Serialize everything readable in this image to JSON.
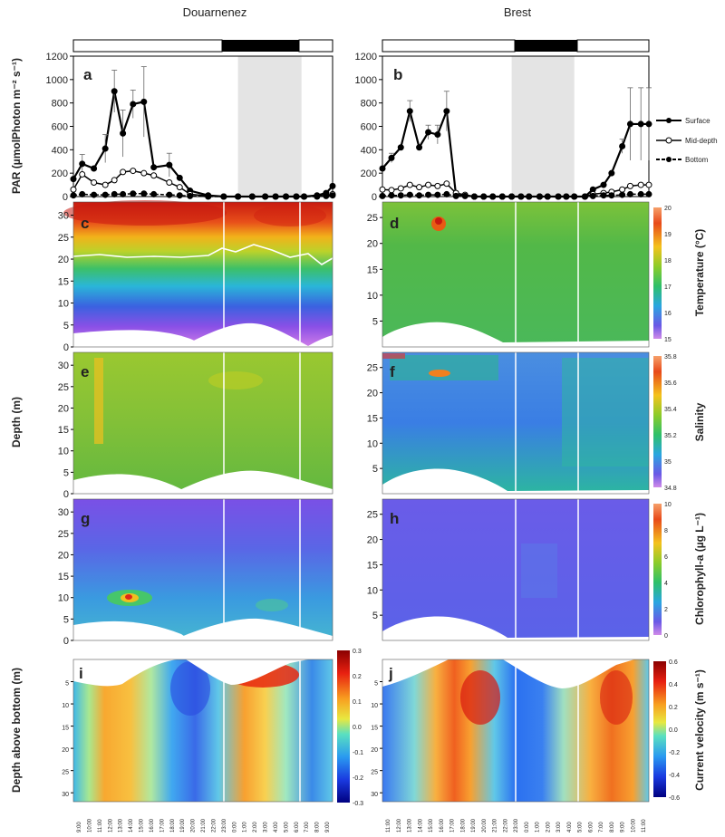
{
  "titles": {
    "left": "Douarnenez",
    "right": "Brest"
  },
  "panel_letters": [
    "a",
    "b",
    "c",
    "d",
    "e",
    "f",
    "g",
    "h",
    "i",
    "j"
  ],
  "axis_labels": {
    "par": "PAR (µmolPhoton m⁻² s⁻¹)",
    "depth": "Depth (m)",
    "depth_above_bottom": "Depth above bottom (m)"
  },
  "colorbars": {
    "temperature": {
      "label": "Temperature (°C)",
      "ticks": [
        "20",
        "19",
        "18",
        "17",
        "16",
        "15"
      ]
    },
    "salinity": {
      "label": "Salinity",
      "ticks": [
        "35.8",
        "35.6",
        "35.4",
        "35.2",
        "35",
        "34.8"
      ]
    },
    "chlorophyll": {
      "label": "Chlorophyll-a (µg L⁻¹)",
      "ticks": [
        "10",
        "8",
        "6",
        "4",
        "2",
        "0"
      ]
    },
    "current_left": {
      "ticks": [
        "0.3",
        "0.2",
        "0.1",
        "0.0",
        "-0.1",
        "-0.2",
        "-0.3"
      ]
    },
    "current_right": {
      "label": "Current velocity (m s⁻¹)",
      "ticks": [
        "0.6",
        "0.4",
        "0.2",
        "0.0",
        "-0.2",
        "-0.4",
        "-0.6"
      ]
    }
  },
  "legend": [
    "Surface",
    "Mid-depth",
    "Bottom"
  ],
  "time_labels": {
    "left": [
      "9:00",
      "10:00",
      "11:00",
      "12:00",
      "13:00",
      "14:00",
      "15:00",
      "16:00",
      "17:00",
      "18:00",
      "19:00",
      "20:00",
      "21:00",
      "22:00",
      "23:00",
      "0:00",
      "1:00",
      "2:00",
      "3:00",
      "4:00",
      "5:00",
      "6:00",
      "7:00",
      "8:00",
      "9:00"
    ],
    "right": [
      "11:00",
      "12:00",
      "13:00",
      "14:00",
      "15:00",
      "16:00",
      "17:00",
      "18:00",
      "19:00",
      "20:00",
      "21:00",
      "22:00",
      "23:00",
      "0:00",
      "1:00",
      "2:00",
      "3:00",
      "4:00",
      "5:00",
      "6:00",
      "7:00",
      "8:00",
      "9:00",
      "10:00",
      "11:00"
    ]
  },
  "chart_data": [
    {
      "panel": "a",
      "type": "line",
      "site": "Douarnenez",
      "title": "",
      "xlabel": "",
      "ylabel": "PAR (µmolPhoton m⁻² s⁻¹)",
      "ylim": [
        0,
        1200
      ],
      "yticks": [
        0,
        200,
        400,
        600,
        800,
        1000,
        1200
      ],
      "night_shading": [
        0.635,
        0.88
      ],
      "series": [
        {
          "name": "Surface",
          "x": [
            0.0,
            0.034,
            0.079,
            0.123,
            0.158,
            0.191,
            0.23,
            0.272,
            0.31,
            0.37,
            0.41,
            0.45,
            0.52,
            0.58,
            0.635,
            0.69,
            0.74,
            0.78,
            0.82,
            0.86,
            0.89,
            0.94,
            0.975,
            1.0
          ],
          "values": [
            150,
            280,
            240,
            410,
            900,
            540,
            790,
            810,
            250,
            270,
            160,
            50,
            10,
            0,
            0,
            0,
            0,
            0,
            0,
            0,
            0,
            10,
            30,
            90
          ],
          "err": [
            0,
            80,
            0,
            120,
            180,
            200,
            120,
            300,
            0,
            100,
            0,
            0,
            0,
            0,
            0,
            0,
            0,
            0,
            0,
            0,
            0,
            0,
            0,
            0
          ]
        },
        {
          "name": "Mid-depth",
          "x": [
            0.0,
            0.034,
            0.079,
            0.123,
            0.158,
            0.191,
            0.23,
            0.272,
            0.31,
            0.37,
            0.41,
            0.45,
            0.52,
            0.58,
            0.635,
            0.69,
            0.74,
            0.78,
            0.82,
            0.86,
            0.89,
            0.94,
            0.975,
            1.0
          ],
          "values": [
            60,
            190,
            120,
            100,
            140,
            210,
            220,
            200,
            180,
            120,
            80,
            20,
            5,
            0,
            0,
            0,
            0,
            0,
            0,
            0,
            0,
            5,
            10,
            20
          ]
        },
        {
          "name": "Bottom",
          "x": [
            0.0,
            0.034,
            0.079,
            0.123,
            0.158,
            0.191,
            0.23,
            0.272,
            0.31,
            0.37,
            0.41,
            0.45,
            0.52,
            0.58,
            0.635,
            0.69,
            0.74,
            0.78,
            0.82,
            0.86,
            0.89,
            0.94,
            0.975,
            1.0
          ],
          "values": [
            10,
            20,
            15,
            15,
            20,
            20,
            25,
            25,
            20,
            15,
            10,
            5,
            0,
            0,
            0,
            0,
            0,
            0,
            0,
            0,
            0,
            0,
            5,
            10
          ]
        }
      ]
    },
    {
      "panel": "b",
      "type": "line",
      "site": "Brest",
      "title": "",
      "xlabel": "",
      "ylabel": "",
      "ylim": [
        0,
        1200
      ],
      "yticks": [
        0,
        200,
        400,
        600,
        800,
        1000,
        1200
      ],
      "night_shading": [
        0.485,
        0.72
      ],
      "series": [
        {
          "name": "Surface",
          "x": [
            0.0,
            0.034,
            0.069,
            0.103,
            0.138,
            0.172,
            0.207,
            0.241,
            0.276,
            0.31,
            0.345,
            0.38,
            0.414,
            0.45,
            0.485,
            0.52,
            0.55,
            0.59,
            0.62,
            0.66,
            0.69,
            0.72,
            0.76,
            0.79,
            0.83,
            0.86,
            0.9,
            0.93,
            0.97,
            1.0
          ],
          "values": [
            240,
            330,
            420,
            730,
            420,
            550,
            530,
            730,
            10,
            10,
            0,
            0,
            0,
            0,
            0,
            0,
            0,
            0,
            0,
            0,
            0,
            0,
            0,
            60,
            100,
            200,
            430,
            620,
            620,
            620
          ],
          "err": [
            0,
            40,
            0,
            90,
            0,
            60,
            80,
            170,
            0,
            0,
            0,
            0,
            0,
            0,
            0,
            0,
            0,
            0,
            0,
            0,
            0,
            0,
            0,
            0,
            0,
            0,
            60,
            310,
            310,
            310
          ]
        },
        {
          "name": "Mid-depth",
          "x": [
            0.0,
            0.034,
            0.069,
            0.103,
            0.138,
            0.172,
            0.207,
            0.241,
            0.276,
            0.31,
            0.345,
            0.38,
            0.414,
            0.45,
            0.485,
            0.52,
            0.55,
            0.59,
            0.62,
            0.66,
            0.69,
            0.72,
            0.76,
            0.79,
            0.83,
            0.86,
            0.9,
            0.93,
            0.97,
            1.0
          ],
          "values": [
            60,
            55,
            70,
            100,
            80,
            100,
            90,
            110,
            30,
            15,
            0,
            0,
            0,
            0,
            0,
            0,
            0,
            0,
            0,
            0,
            0,
            0,
            0,
            20,
            30,
            40,
            60,
            90,
            100,
            100
          ]
        },
        {
          "name": "Bottom",
          "x": [
            0.0,
            0.034,
            0.069,
            0.103,
            0.138,
            0.172,
            0.207,
            0.241,
            0.276,
            0.31,
            0.345,
            0.38,
            0.414,
            0.45,
            0.485,
            0.52,
            0.55,
            0.59,
            0.62,
            0.66,
            0.69,
            0.72,
            0.76,
            0.79,
            0.83,
            0.86,
            0.9,
            0.93,
            0.97,
            1.0
          ],
          "values": [
            5,
            10,
            10,
            15,
            10,
            15,
            15,
            20,
            5,
            5,
            0,
            0,
            0,
            0,
            0,
            0,
            0,
            0,
            0,
            0,
            0,
            0,
            0,
            5,
            10,
            10,
            15,
            20,
            20,
            20
          ]
        }
      ]
    },
    {
      "panel": "c",
      "type": "heatmap",
      "variable": "Temperature (°C)",
      "site": "Douarnenez",
      "ylim": [
        33,
        0
      ],
      "yticks": [
        0,
        5,
        10,
        15,
        20,
        25,
        30
      ],
      "vmin": 15,
      "vmax": 20
    },
    {
      "panel": "d",
      "type": "heatmap",
      "variable": "Temperature (°C)",
      "site": "Brest",
      "ylim": [
        28,
        0
      ],
      "yticks": [
        5,
        10,
        15,
        20,
        25
      ],
      "vmin": 15,
      "vmax": 20
    },
    {
      "panel": "e",
      "type": "heatmap",
      "variable": "Salinity",
      "site": "Douarnenez",
      "ylim": [
        33,
        0
      ],
      "yticks": [
        0,
        5,
        10,
        15,
        20,
        25,
        30
      ],
      "vmin": 34.8,
      "vmax": 35.8
    },
    {
      "panel": "f",
      "type": "heatmap",
      "variable": "Salinity",
      "site": "Brest",
      "ylim": [
        28,
        0
      ],
      "yticks": [
        5,
        10,
        15,
        20,
        25
      ],
      "vmin": 34.8,
      "vmax": 35.8
    },
    {
      "panel": "g",
      "type": "heatmap",
      "variable": "Chlorophyll-a (µg L⁻¹)",
      "site": "Douarnenez",
      "ylim": [
        33,
        0
      ],
      "yticks": [
        0,
        5,
        10,
        15,
        20,
        25,
        30
      ],
      "vmin": 0,
      "vmax": 10
    },
    {
      "panel": "h",
      "type": "heatmap",
      "variable": "Chlorophyll-a (µg L⁻¹)",
      "site": "Brest",
      "ylim": [
        28,
        0
      ],
      "yticks": [
        5,
        10,
        15,
        20,
        25
      ],
      "vmin": 0,
      "vmax": 10
    },
    {
      "panel": "i",
      "type": "heatmap",
      "variable": "Current velocity (m s⁻¹)",
      "site": "Douarnenez",
      "ylim": [
        0,
        32
      ],
      "yticks": [
        5,
        10,
        15,
        20,
        25,
        30
      ],
      "vmin": -0.3,
      "vmax": 0.3
    },
    {
      "panel": "j",
      "type": "heatmap",
      "variable": "Current velocity (m s⁻¹)",
      "site": "Brest",
      "ylim": [
        0,
        32
      ],
      "yticks": [
        5,
        10,
        15,
        20,
        25,
        30
      ],
      "vmin": -0.6,
      "vmax": 0.6
    }
  ]
}
